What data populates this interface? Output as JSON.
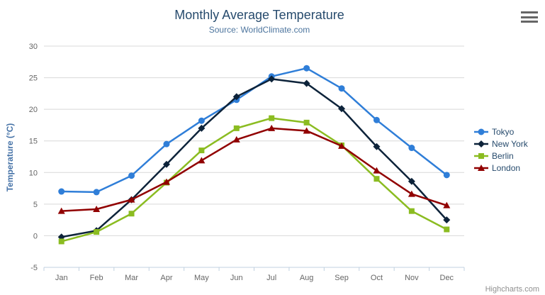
{
  "chart_data": {
    "type": "line",
    "title": "Monthly Average Temperature",
    "subtitle": "Source: WorldClimate.com",
    "categories": [
      "Jan",
      "Feb",
      "Mar",
      "Apr",
      "May",
      "Jun",
      "Jul",
      "Aug",
      "Sep",
      "Oct",
      "Nov",
      "Dec"
    ],
    "xlabel": "",
    "ylabel": "Temperature (°C)",
    "ylim": [
      -5,
      30
    ],
    "yticks": [
      30,
      25,
      20,
      15,
      10,
      5,
      0,
      -5
    ],
    "grid": true,
    "legend_position": "right",
    "series": [
      {
        "name": "Tokyo",
        "color": "#2f7ed8",
        "marker": "circle",
        "values": [
          7.0,
          6.9,
          9.5,
          14.5,
          18.2,
          21.5,
          25.2,
          26.5,
          23.3,
          18.3,
          13.9,
          9.6
        ]
      },
      {
        "name": "New York",
        "color": "#0d233a",
        "marker": "diamond",
        "values": [
          -0.2,
          0.8,
          5.7,
          11.3,
          17.0,
          22.0,
          24.8,
          24.1,
          20.1,
          14.1,
          8.6,
          2.5
        ]
      },
      {
        "name": "Berlin",
        "color": "#8bbc21",
        "marker": "square",
        "values": [
          -0.9,
          0.6,
          3.5,
          8.4,
          13.5,
          17.0,
          18.6,
          17.9,
          14.3,
          9.0,
          3.9,
          1.0
        ]
      },
      {
        "name": "London",
        "color": "#910000",
        "marker": "triangle",
        "values": [
          3.9,
          4.2,
          5.7,
          8.5,
          11.9,
          15.2,
          17.0,
          16.6,
          14.2,
          10.3,
          6.6,
          4.8
        ]
      }
    ]
  },
  "credits": {
    "label": "Highcharts.com"
  },
  "palette": {
    "title_color": "#274b6d",
    "subtitle_color": "#4d759e",
    "axis_title_color": "#4572a7",
    "tick_label_color": "#666666",
    "axis_line_color": "#c0d0e0",
    "gridline_color": "#d8d8d8",
    "credits_color": "#909090",
    "menu_icon_color": "#666666"
  }
}
